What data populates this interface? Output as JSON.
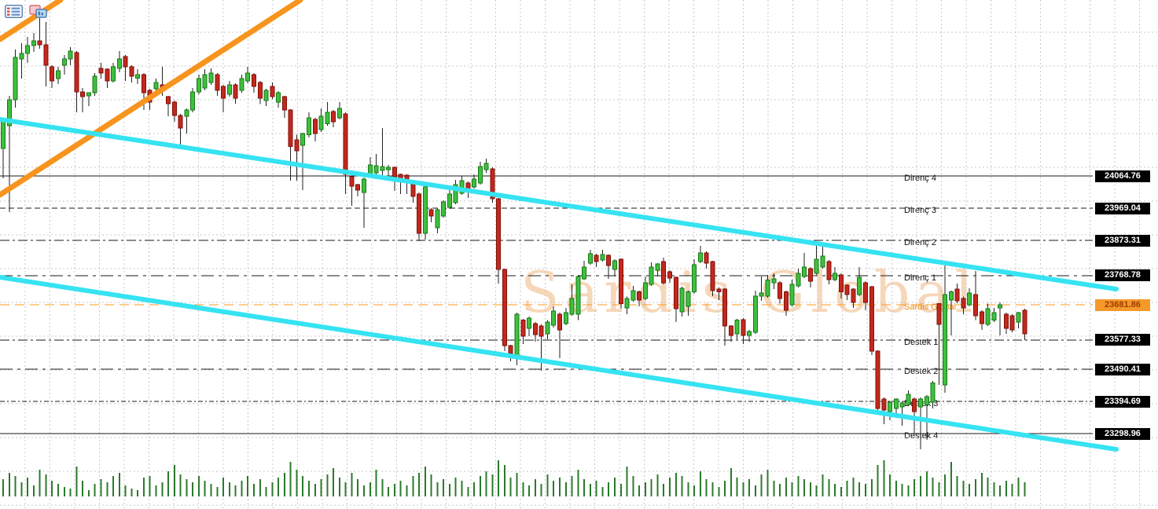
{
  "toolbar": {
    "icons": [
      {
        "name": "table-list-icon"
      },
      {
        "name": "chart-window-icon"
      }
    ]
  },
  "colors": {
    "background": "#ffffff",
    "grid": "#c9c9c9",
    "candle_up_fill": "#3FBF3F",
    "candle_up_border": "#157A15",
    "candle_down_fill": "#C3281E",
    "candle_down_border": "#801008",
    "wick": "#222222",
    "volume": "#2B7A2B",
    "level_line": "#1a1a1a",
    "pivot_line": "#FF9A1E",
    "orange_trendline": "#F7941D",
    "cyan_trendline": "#35E3F2",
    "tag_bg": "#000000",
    "tag_fg": "#ffffff",
    "pivot_tag_bg": "#F5992B",
    "pivot_tag_fg": "#9E3A00",
    "label_fg": "#111111",
    "pivot_label_fg": "#E8890B",
    "watermark": "rgba(240,188,138,0.6)"
  },
  "chart_data": {
    "type": "candlestick",
    "title": "",
    "watermark": "Sardis Global",
    "grid": true,
    "y_axis_side": "right",
    "levels": [
      {
        "name": "Direnç 4",
        "price": 24064.76,
        "tag": "24064.76",
        "line": "solid",
        "kind": "resistance"
      },
      {
        "name": "Direnç 3",
        "price": 23969.04,
        "tag": "23969.04",
        "line": "dashed",
        "kind": "resistance"
      },
      {
        "name": "Direnç 2",
        "price": 23873.31,
        "tag": "23873.31",
        "line": "dashdot",
        "kind": "resistance"
      },
      {
        "name": "Direnç 1",
        "price": 23768.78,
        "tag": "23768.78",
        "line": "longdash",
        "kind": "resistance"
      },
      {
        "name": "Sardis Global",
        "price": 23681.86,
        "tag": "23681.86",
        "line": "orangedash",
        "kind": "pivot"
      },
      {
        "name": "Destek 1",
        "price": 23577.33,
        "tag": "23577.33",
        "line": "dashdot",
        "kind": "support"
      },
      {
        "name": "Destek 2",
        "price": 23490.41,
        "tag": "23490.41",
        "line": "longdash",
        "kind": "support"
      },
      {
        "name": "Destek 3",
        "price": 23394.69,
        "tag": "23394.69",
        "line": "densedash",
        "kind": "support"
      },
      {
        "name": "Destek 4",
        "price": 23298.96,
        "tag": "23298.96",
        "line": "solid",
        "kind": "support"
      }
    ],
    "trendlines": [
      {
        "name": "orange-channel-upper",
        "color": "#F7941D",
        "width": 7,
        "from": [
          0,
          50
        ],
        "to": [
          77,
          0
        ]
      },
      {
        "name": "orange-channel-lower",
        "color": "#F7941D",
        "width": 7,
        "from": [
          0,
          248
        ],
        "to": [
          382,
          0
        ]
      },
      {
        "name": "cyan-channel-upper",
        "color": "#35E3F2",
        "width": 6,
        "from": [
          0,
          152
        ],
        "to": [
          1420,
          368
        ]
      },
      {
        "name": "cyan-channel-lower",
        "color": "#35E3F2",
        "width": 6,
        "from": [
          0,
          353
        ],
        "to": [
          1420,
          572
        ]
      }
    ],
    "candles": [
      [
        24147,
        24238,
        24058,
        24231
      ],
      [
        24214,
        24303,
        23957,
        24291
      ],
      [
        24291,
        24441,
        24268,
        24417
      ],
      [
        24413,
        24459,
        24354,
        24429
      ],
      [
        24429,
        24478,
        24401,
        24452
      ],
      [
        24452,
        24490,
        24434,
        24466
      ],
      [
        24466,
        24541,
        24443,
        24455
      ],
      [
        24455,
        24522,
        24331,
        24394
      ],
      [
        24389,
        24394,
        24326,
        24347
      ],
      [
        24354,
        24389,
        24338,
        24378
      ],
      [
        24394,
        24424,
        24366,
        24413
      ],
      [
        24413,
        24448,
        24394,
        24436
      ],
      [
        24431,
        24436,
        24254,
        24315
      ],
      [
        24315,
        24326,
        24254,
        24301
      ],
      [
        24303,
        24312,
        24273,
        24312
      ],
      [
        24312,
        24371,
        24303,
        24361
      ],
      [
        24385,
        24401,
        24354,
        24371
      ],
      [
        24382,
        24385,
        24326,
        24347
      ],
      [
        24347,
        24401,
        24343,
        24389
      ],
      [
        24385,
        24436,
        24373,
        24413
      ],
      [
        24420,
        24424,
        24347,
        24389
      ],
      [
        24389,
        24394,
        24343,
        24361
      ],
      [
        24356,
        24382,
        24338,
        24366
      ],
      [
        24366,
        24371,
        24261,
        24312
      ],
      [
        24319,
        24324,
        24261,
        24284
      ],
      [
        24324,
        24354,
        24308,
        24343
      ],
      [
        24336,
        24389,
        24303,
        24319
      ],
      [
        24301,
        24303,
        24242,
        24280
      ],
      [
        24284,
        24289,
        24226,
        24245
      ],
      [
        24245,
        24249,
        24156,
        24207
      ],
      [
        24242,
        24266,
        24191,
        24261
      ],
      [
        24261,
        24326,
        24254,
        24315
      ],
      [
        24315,
        24366,
        24308,
        24354
      ],
      [
        24326,
        24382,
        24319,
        24366
      ],
      [
        24343,
        24385,
        24336,
        24371
      ],
      [
        24366,
        24371,
        24303,
        24319
      ],
      [
        24331,
        24336,
        24254,
        24296
      ],
      [
        24308,
        24347,
        24301,
        24336
      ],
      [
        24336,
        24340,
        24280,
        24296
      ],
      [
        24319,
        24366,
        24312,
        24354
      ],
      [
        24347,
        24389,
        24340,
        24371
      ],
      [
        24366,
        24371,
        24312,
        24331
      ],
      [
        24343,
        24347,
        24278,
        24296
      ],
      [
        24289,
        24324,
        24273,
        24319
      ],
      [
        24331,
        24343,
        24294,
        24301
      ],
      [
        24284,
        24317,
        24268,
        24312
      ],
      [
        24301,
        24303,
        24238,
        24261
      ],
      [
        24261,
        24263,
        24051,
        24152
      ],
      [
        24172,
        24187,
        24051,
        24140
      ],
      [
        24156,
        24193,
        24023,
        24191
      ],
      [
        24187,
        24254,
        24179,
        24238
      ],
      [
        24233,
        24238,
        24168,
        24191
      ],
      [
        24203,
        24266,
        24196,
        24242
      ],
      [
        24220,
        24284,
        24214,
        24254
      ],
      [
        24256,
        24261,
        24210,
        24226
      ],
      [
        24238,
        24284,
        24233,
        24266
      ],
      [
        24249,
        24254,
        24011,
        24070
      ],
      [
        24062,
        24065,
        23976,
        24034
      ],
      [
        24039,
        24041,
        24004,
        24023
      ],
      [
        24016,
        24060,
        23911,
        24055
      ],
      [
        24067,
        24121,
        24062,
        24098
      ],
      [
        24074,
        24130,
        24065,
        24095
      ],
      [
        24081,
        24207,
        24055,
        24093
      ],
      [
        24083,
        24098,
        24051,
        24091
      ],
      [
        24091,
        24093,
        24020,
        24062
      ],
      [
        24070,
        24072,
        24011,
        24055
      ],
      [
        24067,
        24070,
        24011,
        24051
      ],
      [
        24039,
        24041,
        23985,
        24004
      ],
      [
        24011,
        24016,
        23871,
        23894
      ],
      [
        23894,
        24037,
        23876,
        24032
      ],
      [
        23965,
        23969,
        23927,
        23946
      ],
      [
        23911,
        23969,
        23894,
        23965
      ],
      [
        23946,
        23992,
        23941,
        23988
      ],
      [
        23971,
        24023,
        23967,
        24011
      ],
      [
        23985,
        24053,
        23981,
        24039
      ],
      [
        24013,
        24065,
        24009,
        24051
      ],
      [
        24044,
        24048,
        23999,
        24023
      ],
      [
        24032,
        24070,
        24027,
        24055
      ],
      [
        24044,
        24107,
        24039,
        24093
      ],
      [
        24083,
        24116,
        24074,
        24102
      ],
      [
        24086,
        24091,
        23985,
        23997
      ],
      [
        23997,
        23999,
        23745,
        23787
      ],
      [
        23787,
        23789,
        23544,
        23560
      ],
      [
        23560,
        23563,
        23514,
        23537
      ],
      [
        23532,
        23659,
        23502,
        23654
      ],
      [
        23636,
        23640,
        23565,
        23589
      ],
      [
        23612,
        23647,
        23589,
        23642
      ],
      [
        23626,
        23631,
        23572,
        23593
      ],
      [
        23619,
        23624,
        23486,
        23589
      ],
      [
        23596,
        23636,
        23579,
        23631
      ],
      [
        23621,
        23677,
        23614,
        23663
      ],
      [
        23654,
        23659,
        23523,
        23607
      ],
      [
        23626,
        23673,
        23621,
        23659
      ],
      [
        23654,
        23743,
        23649,
        23701
      ],
      [
        23654,
        23771,
        23636,
        23766
      ],
      [
        23759,
        23813,
        23755,
        23794
      ],
      [
        23806,
        23845,
        23801,
        23834
      ],
      [
        23829,
        23834,
        23794,
        23810
      ],
      [
        23815,
        23845,
        23810,
        23831
      ],
      [
        23829,
        23831,
        23759,
        23799
      ],
      [
        23787,
        23817,
        23766,
        23813
      ],
      [
        23817,
        23820,
        23670,
        23685
      ],
      [
        23673,
        23706,
        23654,
        23701
      ],
      [
        23696,
        23738,
        23691,
        23724
      ],
      [
        23720,
        23724,
        23677,
        23696
      ],
      [
        23701,
        23766,
        23696,
        23747
      ],
      [
        23743,
        23808,
        23738,
        23794
      ],
      [
        23785,
        23806,
        23766,
        23803
      ],
      [
        23810,
        23822,
        23743,
        23747
      ],
      [
        23780,
        23785,
        23747,
        23761
      ],
      [
        23764,
        23766,
        23631,
        23670
      ],
      [
        23661,
        23736,
        23647,
        23731
      ],
      [
        23677,
        23724,
        23649,
        23720
      ],
      [
        23720,
        23817,
        23715,
        23801
      ],
      [
        23810,
        23857,
        23806,
        23836
      ],
      [
        23836,
        23841,
        23789,
        23806
      ],
      [
        23810,
        23813,
        23708,
        23724
      ],
      [
        23729,
        23733,
        23696,
        23720
      ],
      [
        23729,
        23731,
        23560,
        23619
      ],
      [
        23619,
        23621,
        23572,
        23591
      ],
      [
        23596,
        23640,
        23579,
        23636
      ],
      [
        23638,
        23642,
        23565,
        23591
      ],
      [
        23591,
        23607,
        23572,
        23602
      ],
      [
        23600,
        23724,
        23596,
        23708
      ],
      [
        23708,
        23766,
        23694,
        23717
      ],
      [
        23708,
        23771,
        23703,
        23755
      ],
      [
        23747,
        23775,
        23729,
        23759
      ],
      [
        23747,
        23752,
        23685,
        23701
      ],
      [
        23720,
        23724,
        23649,
        23666
      ],
      [
        23682,
        23757,
        23677,
        23743
      ],
      [
        23738,
        23789,
        23733,
        23775
      ],
      [
        23766,
        23836,
        23761,
        23794
      ],
      [
        23789,
        23794,
        23733,
        23752
      ],
      [
        23775,
        23871,
        23771,
        23817
      ],
      [
        23794,
        23864,
        23789,
        23827
      ],
      [
        23810,
        23815,
        23743,
        23757
      ],
      [
        23757,
        23794,
        23752,
        23775
      ],
      [
        23771,
        23775,
        23701,
        23720
      ],
      [
        23740,
        23743,
        23696,
        23712
      ],
      [
        23729,
        23731,
        23673,
        23689
      ],
      [
        23712,
        23794,
        23708,
        23764
      ],
      [
        23747,
        23752,
        23666,
        23689
      ],
      [
        23736,
        23738,
        23532,
        23544
      ],
      [
        23544,
        23546,
        23358,
        23374
      ],
      [
        23402,
        23407,
        23327,
        23369
      ],
      [
        23365,
        23397,
        23339,
        23393
      ],
      [
        23374,
        23404,
        23346,
        23402
      ],
      [
        23378,
        23395,
        23322,
        23390
      ],
      [
        23385,
        23427,
        23381,
        23416
      ],
      [
        23402,
        23406,
        23299,
        23365
      ],
      [
        23378,
        23407,
        23252,
        23402
      ],
      [
        23385,
        23413,
        23280,
        23409
      ],
      [
        23393,
        23455,
        23374,
        23450
      ],
      [
        23685,
        23687,
        23444,
        23624
      ],
      [
        23444,
        23799,
        23420,
        23712
      ],
      [
        23696,
        23724,
        23591,
        23720
      ],
      [
        23729,
        23745,
        23687,
        23694
      ],
      [
        23701,
        23706,
        23654,
        23673
      ],
      [
        23682,
        23731,
        23677,
        23717
      ],
      [
        23712,
        23782,
        23636,
        23649
      ],
      [
        23661,
        23666,
        23607,
        23626
      ],
      [
        23624,
        23685,
        23619,
        23670
      ],
      [
        23636,
        23673,
        23631,
        23659
      ],
      [
        23673,
        23689,
        23591,
        23682
      ],
      [
        23654,
        23659,
        23596,
        23612
      ],
      [
        23649,
        23654,
        23600,
        23607
      ],
      [
        23631,
        23661,
        23612,
        23659
      ],
      [
        23666,
        23670,
        23577,
        23596
      ]
    ],
    "volumes": [
      22,
      30,
      26,
      18,
      24,
      14,
      34,
      28,
      20,
      16,
      12,
      10,
      38,
      20,
      8,
      16,
      22,
      18,
      26,
      30,
      14,
      10,
      8,
      24,
      26,
      14,
      18,
      32,
      40,
      28,
      22,
      18,
      26,
      20,
      16,
      12,
      24,
      18,
      14,
      20,
      26,
      16,
      22,
      12,
      18,
      24,
      30,
      44,
      34,
      26,
      20,
      16,
      22,
      28,
      36,
      24,
      18,
      30,
      22,
      14,
      18,
      34,
      22,
      12,
      16,
      20,
      14,
      26,
      30,
      38,
      28,
      18,
      22,
      16,
      24,
      20,
      12,
      18,
      26,
      32,
      28,
      46,
      40,
      24,
      30,
      18,
      14,
      22,
      16,
      28,
      20,
      24,
      18,
      26,
      34,
      22,
      16,
      20,
      12,
      18,
      24,
      16,
      38,
      26,
      14,
      18,
      22,
      28,
      16,
      24,
      30,
      26,
      18,
      14,
      32,
      22,
      18,
      12,
      20,
      36,
      24,
      18,
      22,
      14,
      28,
      34,
      20,
      16,
      24,
      18,
      26,
      22,
      18,
      14,
      28,
      22,
      16,
      12,
      20,
      24,
      18,
      16,
      22,
      40,
      46,
      28,
      20,
      16,
      14,
      22,
      26,
      32,
      24,
      18,
      28,
      44,
      26,
      20,
      16,
      22,
      30,
      24,
      18,
      14,
      20,
      16,
      24,
      18
    ]
  }
}
